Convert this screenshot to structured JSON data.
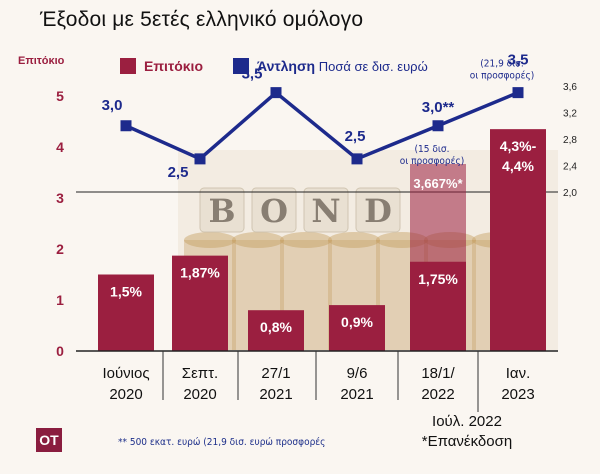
{
  "title": "Έξοδοι με 5ετές ελληνικό ομόλογο",
  "footnote": "** 500 εκατ. ευρώ (21,9 δισ. ευρώ προσφορές",
  "logo": "OT",
  "colors": {
    "bar": "#9b1f40",
    "line": "#1d2a8c",
    "axis": "#111111"
  },
  "chart_data": {
    "type": "bar",
    "categories": [
      "Ιούνιος 2020",
      "Σεπτ. 2020",
      "27/1 2021",
      "9/6 2021",
      "18/1/ 2022",
      "Ιαν. 2023"
    ],
    "category_lines": [
      [
        "Ιούνιος",
        "2020"
      ],
      [
        "Σεπτ.",
        "2020"
      ],
      [
        "27/1",
        "2021"
      ],
      [
        "9/6",
        "2021"
      ],
      [
        "18/1/",
        "2022"
      ],
      [
        "Ιαν.",
        "2023"
      ]
    ],
    "extra_category_lines": [
      "Ιούλ. 2022",
      "*Επανέκδοση"
    ],
    "left_axis_title": "Επιτόκιο",
    "legend": [
      "Επιτόκιο",
      "Άντληση Ποσά σε δισ. ευρώ"
    ],
    "left_ylim": [
      0,
      5
    ],
    "left_ticks": [
      0,
      1,
      2,
      3,
      4,
      5
    ],
    "right_ylim": [
      2.0,
      3.6
    ],
    "right_ticks": [
      "2,0",
      "2,4",
      "2,8",
      "3,2",
      "3,6"
    ],
    "right_tick_values": [
      2.0,
      2.4,
      2.8,
      3.2,
      3.6
    ],
    "series": [
      {
        "name": "Επιτόκιο",
        "type": "bar",
        "axis": "left",
        "values": [
          1.5,
          1.87,
          0.8,
          0.9,
          1.75,
          4.35
        ],
        "labels": [
          "1,5%",
          "1,87%",
          "0,8%",
          "0,9%",
          "1,75%",
          "4,3%-\n4,4%"
        ]
      },
      {
        "name": "Επιτόκιο επανέκδοσης Ιούλ. 2022",
        "type": "bar",
        "axis": "left",
        "category_index": 4,
        "value": 3.667,
        "label": "3,667%*"
      },
      {
        "name": "Άντληση Ποσά σε δισ. ευρώ",
        "type": "line",
        "axis": "right",
        "values": [
          3.0,
          2.5,
          3.5,
          2.5,
          3.0,
          3.5
        ],
        "labels": [
          "3,0",
          "2,5",
          "3,5",
          "2,5",
          "3,0**",
          "3,5"
        ],
        "notes": [
          "",
          "",
          "",
          "",
          "(15 δισ.\nοι προσφορές)",
          "(21,9 δισ.\nοι προσφορές)"
        ]
      }
    ]
  }
}
